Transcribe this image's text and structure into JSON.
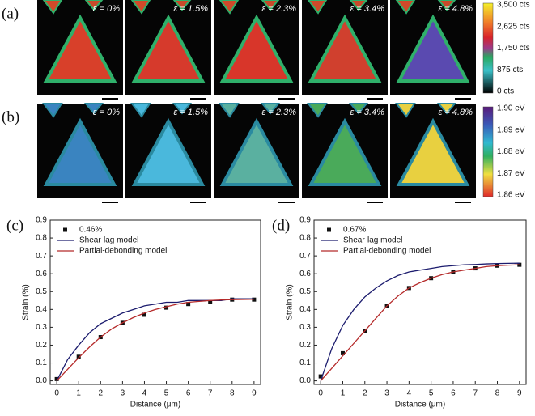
{
  "panels": [
    {
      "label": "(a)",
      "strains": [
        "ε = 0%",
        "ε = 1.5%",
        "ε = 2.3%",
        "ε = 3.4%",
        "ε = 4.8%"
      ],
      "colorbar": [
        "3,500 cts",
        "2,625 cts",
        "1,750 cts",
        "875 cts",
        "0 cts"
      ]
    },
    {
      "label": "(b)",
      "strains": [
        "ε = 0%",
        "ε = 1.5%",
        "ε = 2.3%",
        "ε = 3.4%",
        "ε = 4.8%"
      ],
      "colorbar": [
        "1.90 eV",
        "1.89 eV",
        "1.88 eV",
        "1.87 eV",
        "1.86 eV"
      ]
    }
  ],
  "chart_data": [
    {
      "type": "line",
      "panel": "(c)",
      "x_label": "Distance (μm)",
      "y_label": "Strain (%)",
      "xlim": [
        -0.3,
        9.3
      ],
      "ylim": [
        -0.02,
        0.9
      ],
      "xticks": [
        0,
        1,
        2,
        3,
        4,
        5,
        6,
        7,
        8,
        9
      ],
      "yticks": [
        {
          "value": 0,
          "label": "0.0"
        },
        0.1,
        0.2,
        0.3,
        0.4,
        0.5,
        0.6,
        0.7,
        0.8,
        0.9
      ],
      "legend": "upper left",
      "series": [
        {
          "name": "0.46%",
          "mode": "markers",
          "color": "#111111",
          "x": [
            0,
            1,
            2,
            3,
            4,
            5,
            6,
            7,
            8,
            9
          ],
          "values": [
            0.01,
            0.135,
            0.245,
            0.325,
            0.37,
            0.41,
            0.43,
            0.44,
            0.455,
            0.455
          ]
        },
        {
          "name": "Shear-lag model",
          "mode": "line",
          "color": "#1c1c6e",
          "x": [
            0,
            0.5,
            1,
            1.5,
            2,
            2.5,
            3,
            3.5,
            4,
            4.5,
            5,
            5.5,
            6,
            6.5,
            7,
            7.5,
            8,
            8.5,
            9
          ],
          "values": [
            0,
            0.12,
            0.2,
            0.27,
            0.32,
            0.35,
            0.38,
            0.4,
            0.42,
            0.43,
            0.44,
            0.44,
            0.45,
            0.45,
            0.45,
            0.45,
            0.46,
            0.46,
            0.46
          ]
        },
        {
          "name": "Partial-debonding model",
          "mode": "line",
          "color": "#b52a2a",
          "x": [
            0,
            0.5,
            1,
            1.5,
            2,
            2.5,
            3,
            3.5,
            4,
            4.5,
            5,
            5.5,
            6,
            6.5,
            7,
            7.5,
            8,
            8.5,
            9
          ],
          "values": [
            0,
            0.065,
            0.13,
            0.19,
            0.245,
            0.29,
            0.325,
            0.355,
            0.38,
            0.4,
            0.415,
            0.43,
            0.44,
            0.445,
            0.45,
            0.453,
            0.455,
            0.456,
            0.457
          ]
        }
      ]
    },
    {
      "type": "line",
      "panel": "(d)",
      "x_label": "Distance (μm)",
      "y_label": "Strain (%)",
      "xlim": [
        -0.3,
        9.3
      ],
      "ylim": [
        -0.02,
        0.9
      ],
      "xticks": [
        0,
        1,
        2,
        3,
        4,
        5,
        6,
        7,
        8,
        9
      ],
      "yticks": [
        {
          "value": 0,
          "label": "0.0"
        },
        0.1,
        0.2,
        0.3,
        0.4,
        0.5,
        0.6,
        0.7,
        0.8,
        0.9
      ],
      "legend": "upper left",
      "series": [
        {
          "name": "0.67%",
          "mode": "markers",
          "color": "#111111",
          "x": [
            0,
            1,
            2,
            3,
            4,
            5,
            6,
            7,
            8,
            9
          ],
          "values": [
            0.025,
            0.155,
            0.28,
            0.42,
            0.52,
            0.575,
            0.61,
            0.63,
            0.645,
            0.65
          ]
        },
        {
          "name": "Shear-lag model",
          "mode": "line",
          "color": "#1c1c6e",
          "x": [
            0,
            0.5,
            1,
            1.5,
            2,
            2.5,
            3,
            3.5,
            4,
            4.5,
            5,
            5.5,
            6,
            6.5,
            7,
            7.5,
            8,
            8.5,
            9
          ],
          "values": [
            0,
            0.18,
            0.31,
            0.4,
            0.47,
            0.52,
            0.56,
            0.59,
            0.61,
            0.62,
            0.63,
            0.64,
            0.645,
            0.65,
            0.652,
            0.655,
            0.657,
            0.658,
            0.659
          ]
        },
        {
          "name": "Partial-debonding model",
          "mode": "line",
          "color": "#b52a2a",
          "x": [
            0,
            0.5,
            1,
            1.5,
            2,
            2.5,
            3,
            3.5,
            4,
            4.5,
            5,
            5.5,
            6,
            6.5,
            7,
            7.5,
            8,
            8.5,
            9
          ],
          "values": [
            0,
            0.07,
            0.14,
            0.21,
            0.28,
            0.35,
            0.42,
            0.475,
            0.52,
            0.55,
            0.575,
            0.595,
            0.61,
            0.62,
            0.63,
            0.64,
            0.645,
            0.648,
            0.65
          ]
        }
      ]
    }
  ]
}
